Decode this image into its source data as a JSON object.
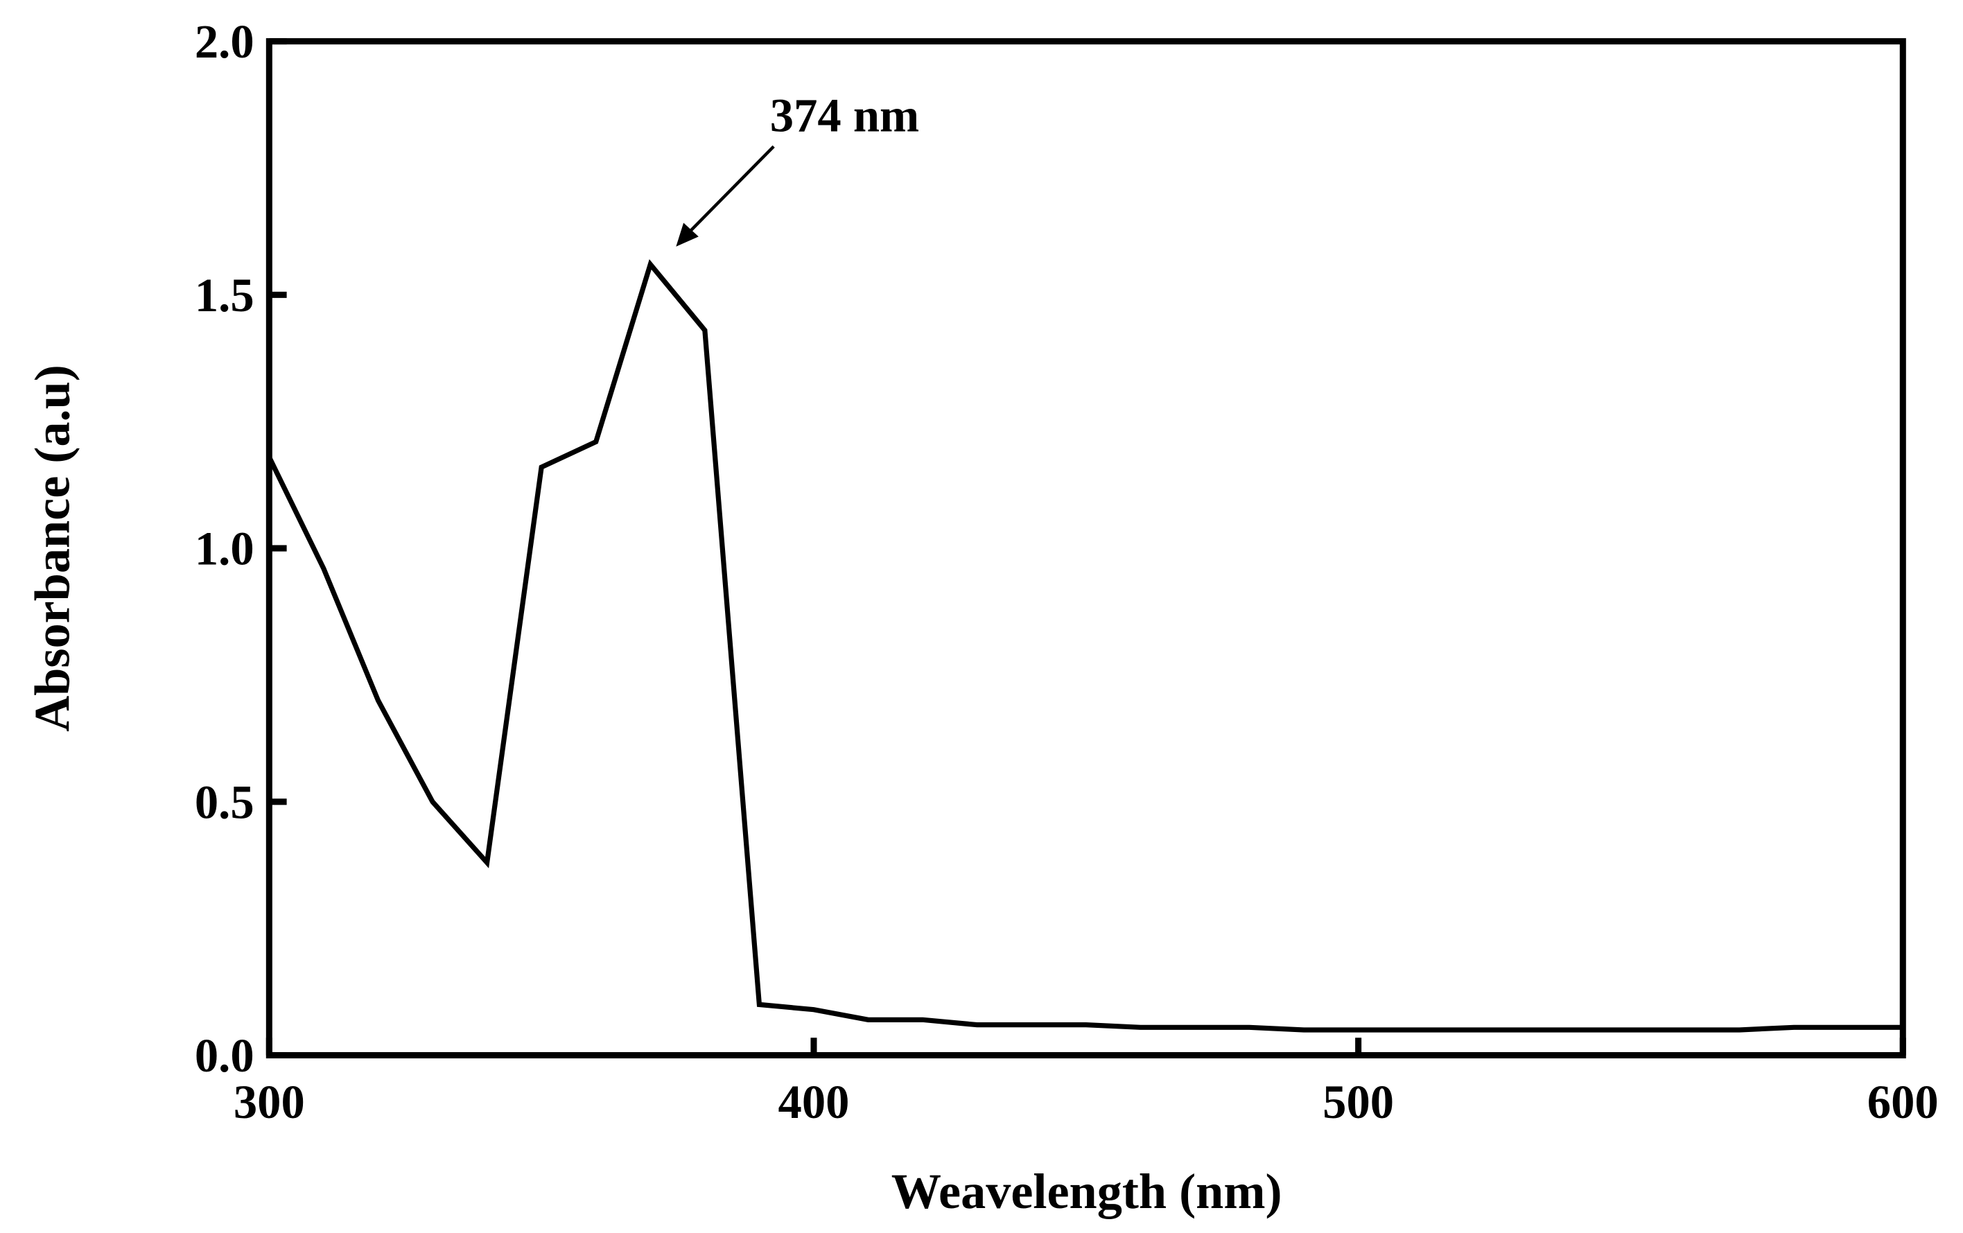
{
  "chart_data": {
    "type": "line",
    "x_label": "Weavelength (nm)",
    "y_label": "Absorbance (a.u)",
    "annotation": "374 nm",
    "x": [
      300,
      310,
      320,
      330,
      340,
      350,
      360,
      370,
      380,
      390,
      400,
      410,
      420,
      430,
      440,
      450,
      460,
      470,
      480,
      490,
      500,
      510,
      520,
      530,
      540,
      550,
      560,
      570,
      580,
      590,
      600
    ],
    "series": [
      {
        "color": "#000000",
        "values": [
          1.18,
          0.96,
          0.7,
          0.5,
          0.38,
          1.16,
          1.21,
          1.56,
          1.43,
          0.1,
          0.09,
          0.07,
          0.07,
          0.06,
          0.06,
          0.06,
          0.055,
          0.055,
          0.055,
          0.05,
          0.05,
          0.05,
          0.05,
          0.05,
          0.05,
          0.05,
          0.05,
          0.05,
          0.055,
          0.055,
          0.055
        ]
      }
    ],
    "xlim": [
      300,
      600
    ],
    "ylim": [
      0,
      2
    ],
    "xticks": [
      300,
      400,
      500,
      600
    ],
    "yticks": [
      {
        "value": 0,
        "label": "0.0"
      },
      0.5,
      {
        "value": 1,
        "label": "1.0"
      },
      1.5,
      {
        "value": 2,
        "label": "2.0"
      }
    ],
    "grid": false
  }
}
